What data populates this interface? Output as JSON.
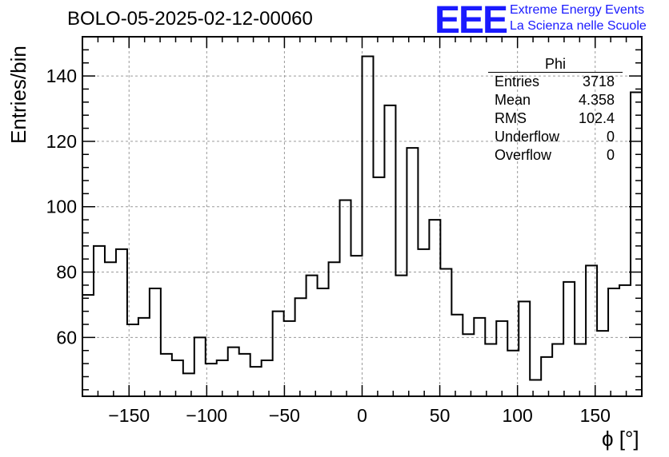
{
  "title": "BOLO-05-2025-02-12-00060",
  "logo": {
    "mark": "EEE",
    "line1": "Extreme Energy Events",
    "line2": "La Scienza nelle Scuole",
    "color": "#1a1aff"
  },
  "stats_box": {
    "name": "Phi",
    "rows": [
      {
        "label": "Entries",
        "value": "3718"
      },
      {
        "label": "Mean",
        "value": "4.358"
      },
      {
        "label": "RMS",
        "value": "102.4"
      },
      {
        "label": "Underflow",
        "value": "0"
      },
      {
        "label": "Overflow",
        "value": "0"
      }
    ]
  },
  "chart_data": {
    "type": "bar",
    "style": "step-histogram",
    "title": "BOLO-05-2025-02-12-00060",
    "xlabel": "ϕ [°]",
    "ylabel": "Entries/bin",
    "xlim": [
      -180,
      180
    ],
    "ylim": [
      42,
      152
    ],
    "grid": true,
    "bin_width": 7.2,
    "x_ticks": [
      -150,
      -100,
      -50,
      0,
      50,
      100,
      150
    ],
    "x_tick_labels": [
      "−150",
      "−100",
      "−50",
      "0",
      "50",
      "100",
      "150"
    ],
    "y_ticks": [
      60,
      80,
      100,
      120,
      140
    ],
    "y_tick_labels": [
      "60",
      "80",
      "100",
      "120",
      "140"
    ],
    "values": [
      73,
      88,
      83,
      87,
      64,
      66,
      75,
      55,
      53,
      49,
      60,
      52,
      53,
      57,
      55,
      51,
      53,
      68,
      65,
      72,
      79,
      75,
      83,
      102,
      85,
      146,
      109,
      131,
      79,
      118,
      87,
      96,
      81,
      67,
      61,
      66,
      58,
      65,
      56,
      71,
      47,
      54,
      58,
      77,
      58,
      82,
      62,
      75,
      76,
      135
    ]
  }
}
